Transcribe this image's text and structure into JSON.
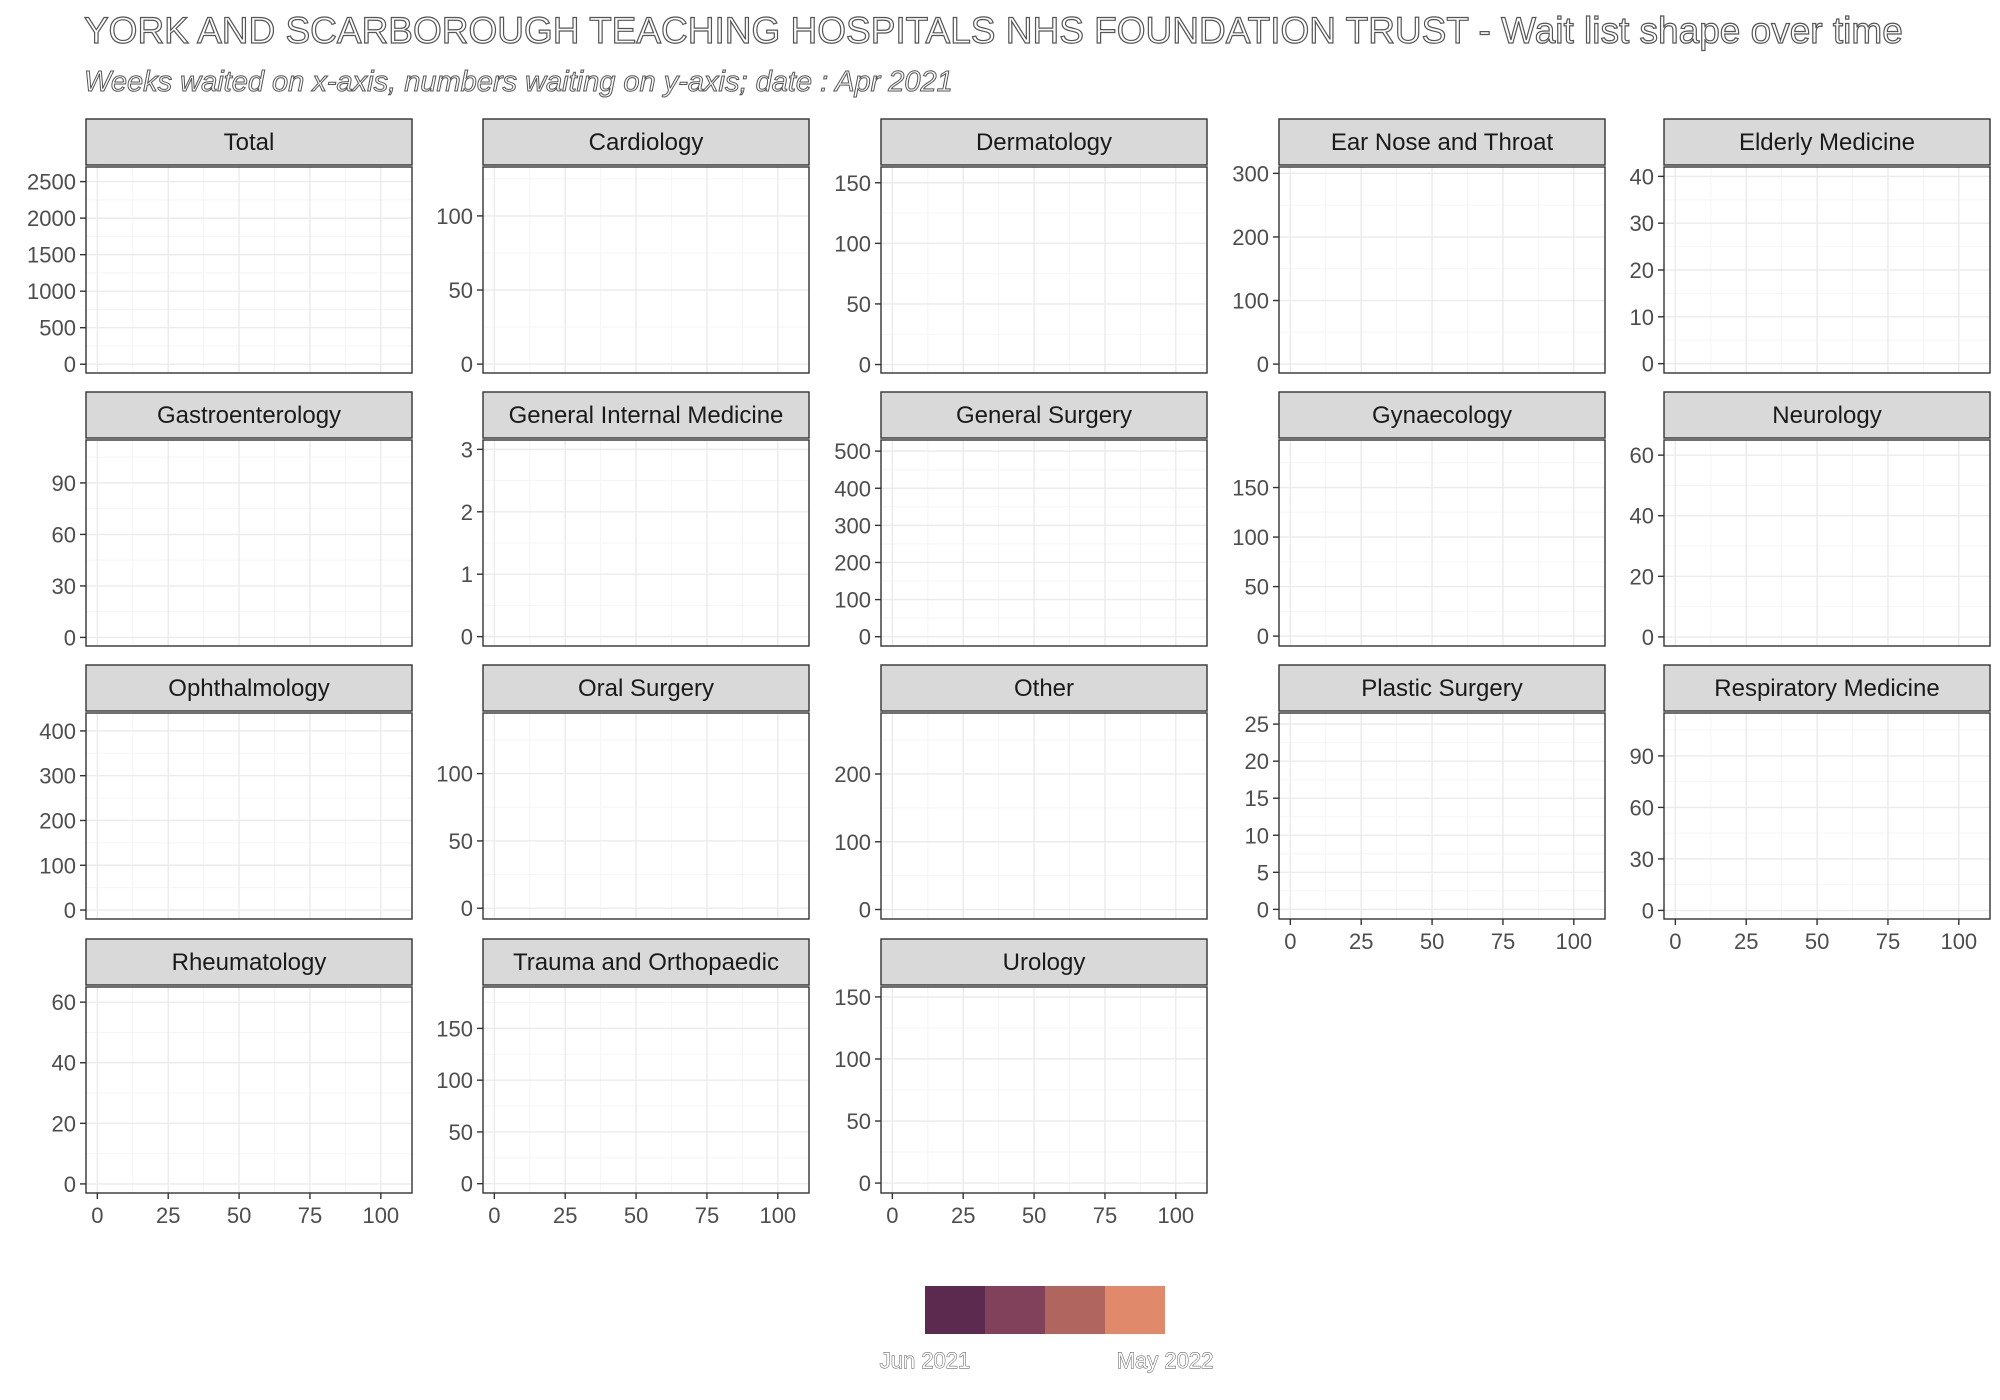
{
  "title": "YORK AND SCARBOROUGH TEACHING HOSPITALS NHS FOUNDATION TRUST - Wait list shape over time",
  "subtitle": "Weeks waited on x-axis, numbers waiting on y-axis; date : Apr 2021",
  "colors": {
    "strip_fill": "#d9d9d9",
    "panel_border": "#333333",
    "grid_major": "#ebebeb",
    "grid_minor": "#f5f5f5",
    "tick_text": "#4d4d4d"
  },
  "chart_data": {
    "type": "line",
    "layout": "facet_wrap",
    "facet_columns": 5,
    "x_ticks": [
      0,
      25,
      50,
      75,
      100
    ],
    "xlim": [
      -4,
      111
    ],
    "grid": true,
    "legend": {
      "position": "bottom",
      "labels": [
        "Jun 2021",
        "May 2022"
      ],
      "colors": [
        "#5c2a4f",
        "#82415a",
        "#b0665f",
        "#e0896b"
      ]
    },
    "panels": [
      {
        "name": "Total",
        "y_ticks": [
          0,
          500,
          1000,
          1500,
          2000,
          2500
        ],
        "ylim": [
          -120,
          2700
        ],
        "x_axis": false,
        "series": []
      },
      {
        "name": "Cardiology",
        "y_ticks": [
          0,
          50,
          100
        ],
        "ylim": [
          -6,
          133
        ],
        "x_axis": false,
        "series": []
      },
      {
        "name": "Dermatology",
        "y_ticks": [
          0,
          50,
          100,
          150
        ],
        "ylim": [
          -7,
          163
        ],
        "x_axis": false,
        "series": []
      },
      {
        "name": "Ear Nose and Throat",
        "y_ticks": [
          0,
          100,
          200,
          300
        ],
        "ylim": [
          -14,
          310
        ],
        "x_axis": false,
        "series": []
      },
      {
        "name": "Elderly Medicine",
        "y_ticks": [
          0,
          10,
          20,
          30,
          40
        ],
        "ylim": [
          -2,
          42
        ],
        "x_axis": false,
        "series": []
      },
      {
        "name": "Gastroenterology",
        "y_ticks": [
          0,
          30,
          60,
          90
        ],
        "ylim": [
          -5,
          115
        ],
        "x_axis": false,
        "series": []
      },
      {
        "name": "General Internal Medicine",
        "y_ticks": [
          0,
          1,
          2,
          3
        ],
        "ylim": [
          -0.15,
          3.15
        ],
        "x_axis": false,
        "series": []
      },
      {
        "name": "General Surgery",
        "y_ticks": [
          0,
          100,
          200,
          300,
          400,
          500
        ],
        "ylim": [
          -25,
          530
        ],
        "x_axis": false,
        "series": []
      },
      {
        "name": "Gynaecology",
        "y_ticks": [
          0,
          50,
          100,
          150
        ],
        "ylim": [
          -10,
          198
        ],
        "x_axis": false,
        "series": []
      },
      {
        "name": "Neurology",
        "y_ticks": [
          0,
          20,
          40,
          60
        ],
        "ylim": [
          -3,
          65
        ],
        "x_axis": false,
        "series": []
      },
      {
        "name": "Ophthalmology",
        "y_ticks": [
          0,
          100,
          200,
          300,
          400
        ],
        "ylim": [
          -20,
          440
        ],
        "x_axis": false,
        "series": []
      },
      {
        "name": "Oral Surgery",
        "y_ticks": [
          0,
          50,
          100
        ],
        "ylim": [
          -8,
          145
        ],
        "x_axis": false,
        "series": []
      },
      {
        "name": "Other",
        "y_ticks": [
          0,
          100,
          200
        ],
        "ylim": [
          -14,
          290
        ],
        "x_axis": false,
        "series": []
      },
      {
        "name": "Plastic Surgery",
        "y_ticks": [
          0,
          5,
          10,
          15,
          20,
          25
        ],
        "ylim": [
          -1.3,
          26.5
        ],
        "x_axis": true,
        "series": []
      },
      {
        "name": "Respiratory Medicine",
        "y_ticks": [
          0,
          30,
          60,
          90
        ],
        "ylim": [
          -5,
          115
        ],
        "x_axis": true,
        "series": []
      },
      {
        "name": "Rheumatology",
        "y_ticks": [
          0,
          20,
          40,
          60
        ],
        "ylim": [
          -3,
          65
        ],
        "x_axis": true,
        "series": []
      },
      {
        "name": "Trauma and Orthopaedic",
        "y_ticks": [
          0,
          50,
          100,
          150
        ],
        "ylim": [
          -9,
          190
        ],
        "x_axis": true,
        "series": []
      },
      {
        "name": "Urology",
        "y_ticks": [
          0,
          50,
          100,
          150
        ],
        "ylim": [
          -8,
          158
        ],
        "x_axis": true,
        "series": []
      }
    ]
  }
}
